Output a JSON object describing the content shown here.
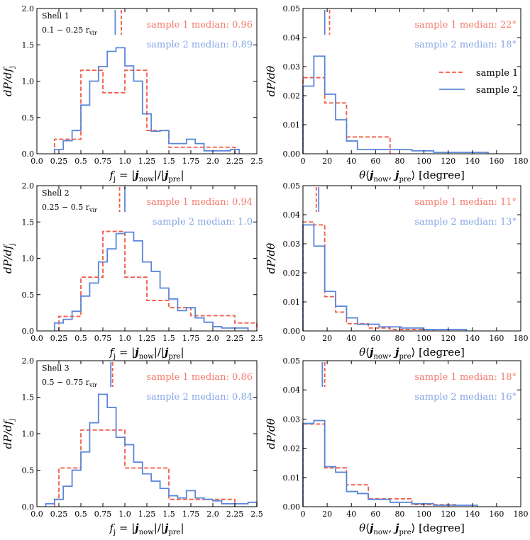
{
  "colors": {
    "sample1": "#f25a46",
    "sample2": "#5b86d9",
    "sample1_text": "#f47a6a",
    "sample2_text": "#85a6e6"
  },
  "legend": {
    "sample1": "sample 1",
    "sample2": "sample 2"
  },
  "chart_data": [
    {
      "type": "histogram",
      "panel": "shell1-fj",
      "shell_label": "Shell 1",
      "range_label": "0.1 − 0.25 r",
      "range_sub": "vir",
      "xlabel": "f_j = |j_now|/|j_pre|",
      "ylabel": "dP/df_j",
      "xlim": [
        0,
        2.5
      ],
      "ylim": [
        0,
        2.0
      ],
      "xticks": [
        "0.0",
        "0.25",
        "0.5",
        "0.75",
        "1.0",
        "1.25",
        "1.5",
        "1.75",
        "2.0",
        "2.25",
        "2.5"
      ],
      "yticks": [
        "0.0",
        "0.5",
        "1.0",
        "1.5",
        "2.0"
      ],
      "annotations": [
        "sample 1 median: 0.96",
        "sample 2 median: 0.89"
      ],
      "medians": [
        0.96,
        0.89
      ],
      "series": [
        {
          "name": "sample 1",
          "edges": [
            0.2,
            0.25,
            0.5,
            0.75,
            1.0,
            1.25,
            1.5,
            2.25
          ],
          "values": [
            0.2,
            0.2,
            1.15,
            0.84,
            1.15,
            0.32,
            0.09
          ]
        },
        {
          "name": "sample 2",
          "edges": [
            0.2,
            0.3,
            0.4,
            0.5,
            0.6,
            0.7,
            0.8,
            0.9,
            1.0,
            1.1,
            1.2,
            1.3,
            1.4,
            1.5,
            1.6,
            1.7,
            1.8,
            1.9,
            2.0,
            2.1,
            2.2,
            2.3
          ],
          "values": [
            0.06,
            0.18,
            0.32,
            0.67,
            1.0,
            1.2,
            1.41,
            1.46,
            1.21,
            1.0,
            0.55,
            0.31,
            0.32,
            0.14,
            0.14,
            0.2,
            0.14,
            0.04,
            0.04,
            0.04,
            0.06
          ]
        }
      ]
    },
    {
      "type": "histogram",
      "panel": "shell1-theta",
      "xlabel": "θ⟨j_now, j_pre⟩ [degree]",
      "ylabel": "dP/dθ",
      "xlim": [
        0,
        180
      ],
      "ylim": [
        0,
        0.05
      ],
      "xticks": [
        "0",
        "20",
        "40",
        "60",
        "80",
        "100",
        "120",
        "140",
        "160",
        "180"
      ],
      "yticks": [
        "0.00",
        "0.01",
        "0.02",
        "0.03",
        "0.04",
        "0.05"
      ],
      "annotations": [
        "sample 1 median: 22°",
        "sample 2 median: 18°"
      ],
      "medians": [
        22,
        18
      ],
      "has_legend": true,
      "series": [
        {
          "name": "sample 1",
          "edges": [
            0,
            18,
            36,
            54,
            72
          ],
          "values": [
            0.0262,
            0.0175,
            0.0058,
            0.0058
          ]
        },
        {
          "name": "sample 2",
          "edges": [
            0,
            9,
            18,
            27,
            36,
            45,
            54,
            63,
            72,
            81,
            90,
            99,
            108,
            117,
            126,
            135,
            144,
            153
          ],
          "values": [
            0.0233,
            0.0336,
            0.0205,
            0.0117,
            0.0044,
            0.0015,
            0.0015,
            0.0015,
            0.0015,
            0.0015,
            0.001,
            0.001,
            0.0005,
            0.0005,
            0.0005,
            0.0005,
            0.0005
          ]
        }
      ]
    },
    {
      "type": "histogram",
      "panel": "shell2-fj",
      "shell_label": "Shell 2",
      "range_label": "0.25 − 0.5 r",
      "range_sub": "vir",
      "xlabel": "f_j = |j_now|/|j_pre|",
      "ylabel": "dP/df_j",
      "xlim": [
        0,
        2.5
      ],
      "ylim": [
        0,
        2.0
      ],
      "xticks": [
        "0.0",
        "0.25",
        "0.5",
        "0.75",
        "1.0",
        "1.25",
        "1.5",
        "1.75",
        "2.0",
        "2.25",
        "2.5"
      ],
      "yticks": [
        "0.0",
        "0.5",
        "1.0",
        "1.5",
        "2.0"
      ],
      "annotations": [
        "sample 1 median: 0.94",
        "sample 2 median: 1.0"
      ],
      "medians": [
        0.94,
        1.0
      ],
      "series": [
        {
          "name": "sample 1",
          "edges": [
            0.25,
            0.5,
            0.75,
            1.0,
            1.25,
            1.5,
            1.75,
            2.0,
            2.25,
            2.5
          ],
          "values": [
            0.2,
            0.74,
            1.37,
            0.74,
            0.42,
            0.32,
            0.21,
            0.21,
            0.11
          ]
        },
        {
          "name": "sample 2",
          "edges": [
            0.2,
            0.3,
            0.4,
            0.5,
            0.6,
            0.7,
            0.8,
            0.9,
            1.0,
            1.1,
            1.2,
            1.3,
            1.4,
            1.5,
            1.6,
            1.7,
            1.8,
            1.9,
            2.0,
            2.1,
            2.2,
            2.3,
            2.4
          ],
          "values": [
            0.11,
            0.16,
            0.27,
            0.48,
            0.66,
            0.95,
            1.13,
            1.34,
            1.36,
            1.24,
            0.95,
            0.82,
            0.59,
            0.44,
            0.28,
            0.32,
            0.18,
            0.12,
            0.06,
            0.04,
            0.04,
            0.04
          ]
        }
      ]
    },
    {
      "type": "histogram",
      "panel": "shell2-theta",
      "xlabel": "θ⟨j_now, j_pre⟩ [degree]",
      "ylabel": "dP/dθ",
      "xlim": [
        0,
        180
      ],
      "ylim": [
        0,
        0.05
      ],
      "xticks": [
        "0",
        "20",
        "40",
        "60",
        "80",
        "100",
        "120",
        "140",
        "160",
        "180"
      ],
      "yticks": [
        "0.00",
        "0.01",
        "0.02",
        "0.03",
        "0.04",
        "0.05"
      ],
      "annotations": [
        "sample 1 median: 11°",
        "sample 2 median: 13°"
      ],
      "medians": [
        11,
        13
      ],
      "series": [
        {
          "name": "sample 1",
          "edges": [
            0,
            9,
            18,
            27,
            36,
            54,
            72,
            108
          ],
          "values": [
            0.0375,
            0.0365,
            0.0118,
            0.0065,
            0.0025,
            0.001,
            0.0005
          ]
        },
        {
          "name": "sample 2",
          "edges": [
            0,
            9,
            18,
            27,
            36,
            45,
            54,
            63,
            72,
            81,
            90,
            99,
            108,
            117,
            126,
            135
          ],
          "values": [
            0.0365,
            0.0292,
            0.0136,
            0.0085,
            0.0045,
            0.0023,
            0.0023,
            0.0014,
            0.0014,
            0.001,
            0.001,
            0.0005,
            0.0005,
            0.0005,
            0.0005
          ]
        }
      ]
    },
    {
      "type": "histogram",
      "panel": "shell3-fj",
      "shell_label": "Shell 3",
      "range_label": "0.5 − 0.75 r",
      "range_sub": "vir",
      "xlabel": "f_j = |j_now|/|j_pre|",
      "ylabel": "dP/df_j",
      "xlim": [
        0,
        2.5
      ],
      "ylim": [
        0,
        2.0
      ],
      "xticks": [
        "0.0",
        "0.25",
        "0.5",
        "0.75",
        "1.0",
        "1.25",
        "1.5",
        "1.75",
        "2.0",
        "2.25",
        "2.5"
      ],
      "yticks": [
        "0.0",
        "0.5",
        "1.0",
        "1.5",
        "2.0"
      ],
      "annotations": [
        "sample 1 median: 0.86",
        "sample 2 median: 0.84"
      ],
      "medians": [
        0.86,
        0.84
      ],
      "series": [
        {
          "name": "sample 1",
          "edges": [
            0.2,
            0.25,
            0.5,
            1.0,
            1.5,
            2.25
          ],
          "values": [
            0.1,
            0.53,
            1.05,
            0.53,
            0.1
          ]
        },
        {
          "name": "sample 2",
          "edges": [
            0.1,
            0.2,
            0.3,
            0.4,
            0.5,
            0.6,
            0.7,
            0.8,
            0.9,
            1.0,
            1.1,
            1.2,
            1.3,
            1.4,
            1.5,
            1.6,
            1.7,
            1.8,
            1.9,
            2.0,
            2.1,
            2.2,
            2.3,
            2.4,
            2.5
          ],
          "values": [
            0.04,
            0.1,
            0.28,
            0.5,
            0.75,
            1.15,
            1.54,
            1.36,
            0.95,
            0.85,
            0.61,
            0.45,
            0.35,
            0.25,
            0.15,
            0.12,
            0.22,
            0.12,
            0.1,
            0.08,
            0.04,
            0.04,
            0.04,
            0.06
          ]
        }
      ]
    },
    {
      "type": "histogram",
      "panel": "shell3-theta",
      "xlabel": "θ⟨j_now, j_pre⟩ [degree]",
      "ylabel": "dP/dθ",
      "xlim": [
        0,
        180
      ],
      "ylim": [
        0,
        0.05
      ],
      "xticks": [
        "0",
        "20",
        "40",
        "60",
        "80",
        "100",
        "120",
        "140",
        "160",
        "180"
      ],
      "yticks": [
        "0.00",
        "0.01",
        "0.02",
        "0.03",
        "0.04",
        "0.05"
      ],
      "annotations": [
        "sample 1 median: 18°",
        "sample 2 median: 16°"
      ],
      "medians": [
        18,
        16
      ],
      "series": [
        {
          "name": "sample 1",
          "edges": [
            0,
            18,
            36,
            54,
            72,
            90,
            126
          ],
          "values": [
            0.0283,
            0.0133,
            0.0075,
            0.0027,
            0.0027,
            0.0007
          ]
        },
        {
          "name": "sample 2",
          "edges": [
            0,
            9,
            18,
            27,
            36,
            45,
            54,
            63,
            72,
            81,
            90,
            99,
            108,
            117,
            126,
            135,
            144
          ],
          "values": [
            0.0285,
            0.0295,
            0.0137,
            0.0118,
            0.0052,
            0.0045,
            0.0025,
            0.0025,
            0.0015,
            0.0015,
            0.001,
            0.001,
            0.0005,
            0.0005,
            0.0005,
            0.0005
          ]
        }
      ]
    }
  ]
}
